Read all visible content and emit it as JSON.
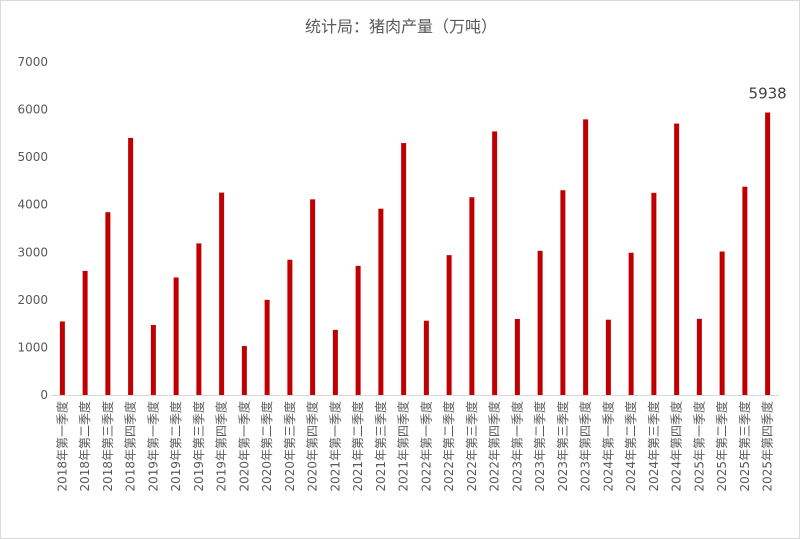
{
  "chart_data": {
    "type": "bar",
    "title": "统计局：猪肉产量（万吨）",
    "xlabel": "",
    "ylabel": "",
    "ylim": [
      0,
      7000
    ],
    "yticks": [
      0,
      1000,
      2000,
      3000,
      4000,
      5000,
      6000,
      7000
    ],
    "grid": false,
    "legend": "none",
    "bar_color": "#c00000",
    "categories": [
      "2018年第一季度",
      "2018年第二季度",
      "2018年第三季度",
      "2018年第四季度",
      "2019年第一季度",
      "2019年第二季度",
      "2019年第三季度",
      "2019年第四季度",
      "2020年第一季度",
      "2020年第二季度",
      "2020年第三季度",
      "2020年第四季度",
      "2021年第一季度",
      "2021年第二季度",
      "2021年第三季度",
      "2021年第四季度",
      "2022年第一季度",
      "2022年第二季度",
      "2022年第三季度",
      "2022年第四季度",
      "2023年第一季度",
      "2023年第二季度",
      "2023年第三季度",
      "2023年第四季度",
      "2024年第一季度",
      "2024年第二季度",
      "2024年第三季度",
      "2024年第四季度",
      "2025年第一季度",
      "2025年第二季度",
      "2025年第三季度",
      "2025年第四季度"
    ],
    "values": [
      1546,
      2609,
      3843,
      5404,
      1472,
      2470,
      3187,
      4255,
      1029,
      2000,
      2844,
      4113,
      1369,
      2715,
      3916,
      5296,
      1561,
      2940,
      4157,
      5541,
      1599,
      3031,
      4304,
      5794,
      1583,
      2990,
      4250,
      5706,
      1601,
      3016,
      4378,
      5938
    ],
    "data_labels": [
      {
        "index": 31,
        "text": "5938"
      }
    ]
  }
}
